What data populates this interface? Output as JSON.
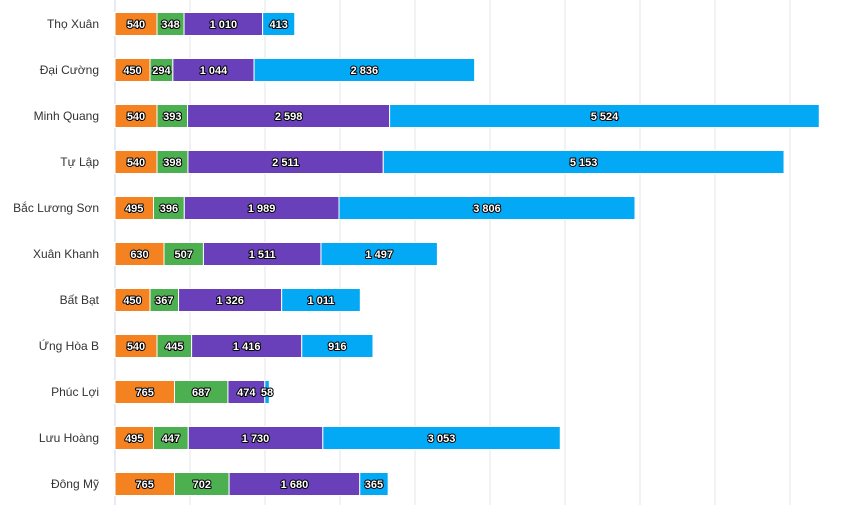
{
  "chart_data": {
    "type": "bar",
    "orientation": "horizontal",
    "stacked": true,
    "title": "",
    "xlabel": "",
    "ylabel": "",
    "xlim": [
      0,
      9000
    ],
    "grid": true,
    "legend": "none",
    "thousands_separator": " ",
    "categories": [
      "Thọ Xuân",
      "Đại Cường",
      "Minh Quang",
      "Tự Lập",
      "Bắc Lương Sơn",
      "Xuân Khanh",
      "Bất Bạt",
      "Ứng Hòa B",
      "Phúc Lợi",
      "Lưu Hoàng",
      "Đông Mỹ"
    ],
    "series": [
      {
        "color": "#f58220",
        "values": [
          540,
          450,
          540,
          540,
          495,
          630,
          450,
          540,
          765,
          495,
          765
        ]
      },
      {
        "color": "#4caf50",
        "values": [
          348,
          294,
          393,
          398,
          396,
          507,
          367,
          445,
          687,
          447,
          702
        ]
      },
      {
        "color": "#6a3fba",
        "values": [
          1010,
          1044,
          2598,
          2511,
          1989,
          1511,
          1326,
          1416,
          474,
          1730,
          1680
        ]
      },
      {
        "color": "#03a9f4",
        "values": [
          413,
          2836,
          5524,
          5153,
          3806,
          1497,
          1011,
          916,
          58,
          3053,
          365
        ]
      }
    ]
  }
}
